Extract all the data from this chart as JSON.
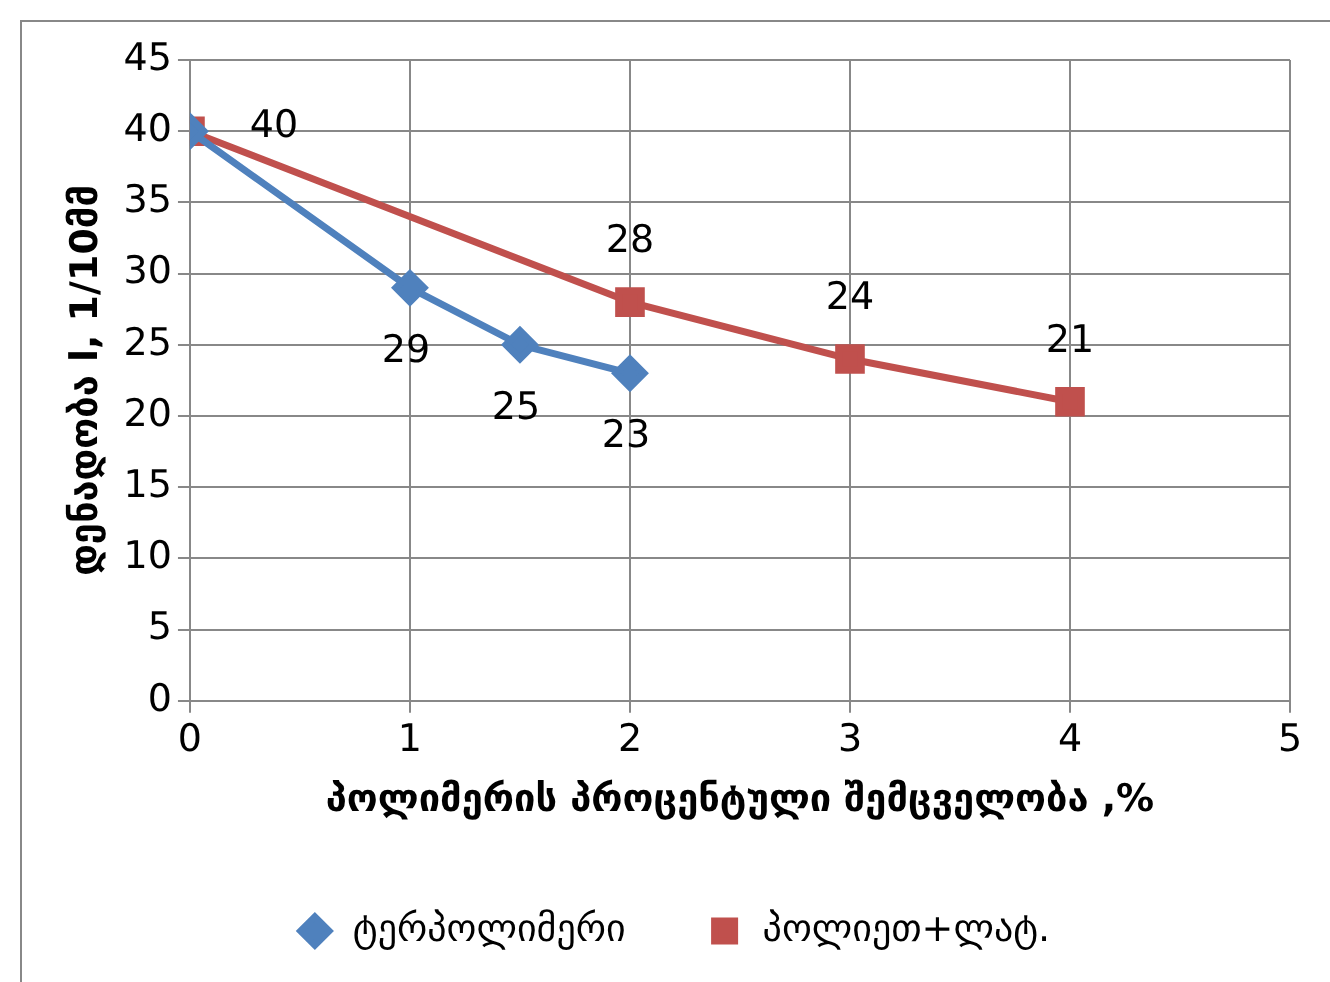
{
  "chart_data": {
    "type": "line",
    "xlabel": "პოლიმერის პროცენტული შემცველობა ,%",
    "ylabel": "დენადობა l, 1/10მმ",
    "xlim": [
      0,
      5
    ],
    "xticks": [
      0,
      1,
      2,
      3,
      4,
      5
    ],
    "ylim": [
      0,
      45
    ],
    "yticks": [
      0,
      5,
      10,
      15,
      20,
      25,
      30,
      35,
      40,
      45
    ],
    "grid": true,
    "legend": "bottom",
    "line_style": "solid",
    "series": [
      {
        "name": "ტერპოლიმერი",
        "color": "#4f81bd",
        "marker": "diamond",
        "x": [
          0,
          1,
          1.5,
          2
        ],
        "values": [
          40,
          29,
          25,
          23
        ],
        "value_labels": [
          null,
          "29",
          "25",
          "23"
        ]
      },
      {
        "name": "პოლიეთ+ლატ.",
        "color": "#c0504d",
        "marker": "square",
        "x": [
          0,
          2,
          3,
          4
        ],
        "values": [
          40,
          28,
          24,
          21
        ],
        "value_labels": [
          "40",
          "28",
          "24",
          "21"
        ]
      }
    ]
  }
}
